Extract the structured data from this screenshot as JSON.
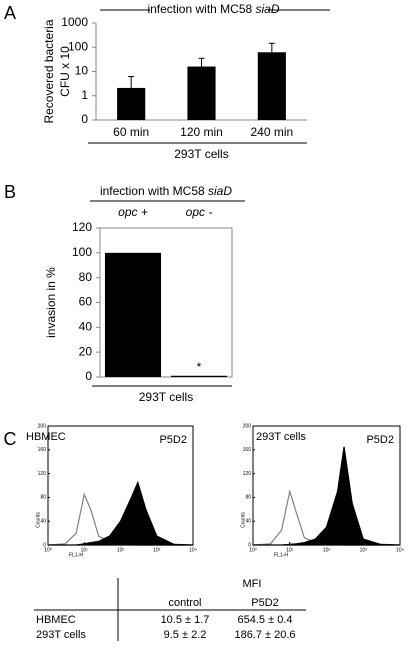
{
  "chart_data": [
    {
      "type": "bar",
      "panel": "A",
      "title": "infection with MC58",
      "title_italic": "siaD",
      "ylabel": [
        "Recovered bacteria",
        "CFU x 10"
      ],
      "categories": [
        "60 min",
        "120 min",
        "240 min"
      ],
      "values": [
        2.1,
        16,
        62
      ],
      "errors": [
        4.1,
        19,
        84
      ],
      "color": "#000000",
      "log_scale": true,
      "ylim": [
        0.1,
        1000
      ],
      "yticks": [
        {
          "value": 0.1,
          "label": "0"
        },
        1,
        10,
        100,
        1000
      ],
      "xlabel": "293T cells"
    },
    {
      "type": "bar",
      "panel": "B",
      "title": "infection with MC58",
      "title_italic": "siaD",
      "ylabel": "invasion in %",
      "categories": [
        "opc +",
        "opc -"
      ],
      "values": [
        100,
        1
      ],
      "annotation": "*",
      "color": "#000000",
      "frame": true,
      "ylim": [
        0,
        120
      ],
      "yticks": [
        0,
        20,
        40,
        60,
        80,
        100,
        120
      ],
      "xlabel": "293T cells"
    },
    {
      "type": "area",
      "panel": "C",
      "title": "HBMEC",
      "annotation": "P5D2",
      "xlabel": "FL1-H",
      "ylabel": "Counts",
      "x": [
        1,
        3,
        6,
        10,
        15,
        25,
        50,
        100,
        200,
        300,
        500,
        1000,
        3000,
        10000
      ],
      "log_x": true,
      "frame": true,
      "series": [
        {
          "color": "#808080",
          "filled": false,
          "values": [
            0,
            2,
            20,
            85,
            60,
            15,
            5,
            2,
            1,
            0,
            0,
            0,
            0,
            0
          ]
        },
        {
          "color": "#000000",
          "filled": true,
          "values": [
            0,
            0,
            0,
            2,
            4,
            6,
            15,
            40,
            80,
            105,
            60,
            15,
            1,
            0
          ]
        }
      ],
      "xlim": [
        1,
        10000
      ],
      "xticks": [
        {
          "value": 1,
          "label": "10⁰"
        },
        {
          "value": 10,
          "label": "10¹"
        },
        {
          "value": 100,
          "label": "10²"
        },
        {
          "value": 1000,
          "label": "10³"
        },
        {
          "value": 10000,
          "label": "10⁴"
        }
      ],
      "ylim": [
        0,
        200
      ],
      "yticks": [
        0,
        40,
        80,
        120,
        160,
        200
      ]
    },
    {
      "type": "area",
      "title": "293T cells",
      "annotation": "P5D2",
      "xlabel": "FL1-H",
      "ylabel": "Counts",
      "x": [
        1,
        3,
        6,
        10,
        15,
        25,
        50,
        100,
        200,
        300,
        500,
        1000,
        3000,
        10000
      ],
      "log_x": true,
      "frame": true,
      "series": [
        {
          "color": "#808080",
          "filled": false,
          "values": [
            0,
            2,
            25,
            90,
            55,
            12,
            4,
            2,
            1,
            0,
            0,
            0,
            0,
            0
          ]
        },
        {
          "color": "#000000",
          "filled": true,
          "values": [
            0,
            0,
            0,
            1,
            2,
            4,
            10,
            30,
            90,
            165,
            70,
            10,
            1,
            0
          ]
        }
      ],
      "xlim": [
        1,
        10000
      ],
      "xticks": [
        {
          "value": 1,
          "label": "10⁰"
        },
        {
          "value": 10,
          "label": "10¹"
        },
        {
          "value": 100,
          "label": "10²"
        },
        {
          "value": 1000,
          "label": "10³"
        },
        {
          "value": 10000,
          "label": "10⁴"
        }
      ],
      "ylim": [
        0,
        200
      ],
      "yticks": [
        0,
        40,
        80,
        120,
        160,
        200
      ]
    }
  ],
  "table": {
    "title": "MFI",
    "columns": [
      "control",
      "P5D2"
    ],
    "rows": [
      [
        "HBMEC",
        "10.5 ± 1.7",
        "654.5 ± 0.4"
      ],
      [
        "293T cells",
        "9.5 ± 2.2",
        "186.7 ± 20.6"
      ]
    ]
  }
}
